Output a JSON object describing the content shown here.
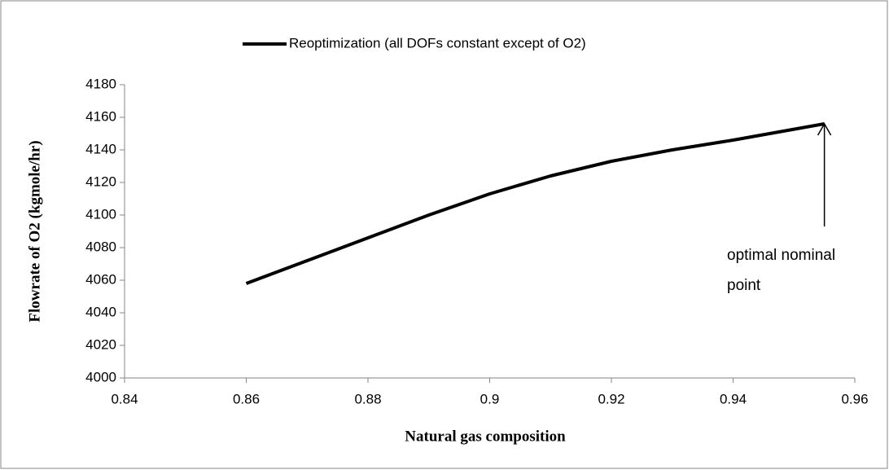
{
  "chart_data": {
    "type": "line",
    "legend_label": "Reoptimization (all DOFs constant except of O2)",
    "xlabel": "Natural gas composition",
    "ylabel": "Flowrate of O2 (kgmole/hr)",
    "annotation": [
      "optimal nominal",
      "point"
    ],
    "x": [
      0.86,
      0.87,
      0.88,
      0.89,
      0.9,
      0.91,
      0.92,
      0.93,
      0.94,
      0.955
    ],
    "series": [
      {
        "name": "Reoptimization (all DOFs constant except of O2)",
        "color": "#000000",
        "values": [
          4058,
          4072,
          4086,
          4100,
          4113,
          4124,
          4133,
          4140,
          4146,
          4156
        ]
      }
    ],
    "xlim": [
      0.84,
      0.96
    ],
    "xticks": [
      0.84,
      0.86,
      0.88,
      0.9,
      0.92,
      0.94,
      0.96
    ],
    "ylim": [
      4000,
      4180
    ],
    "yticks": [
      4000,
      4020,
      4040,
      4060,
      4080,
      4100,
      4120,
      4140,
      4160,
      4180
    ],
    "grid": false,
    "legend": "top"
  }
}
